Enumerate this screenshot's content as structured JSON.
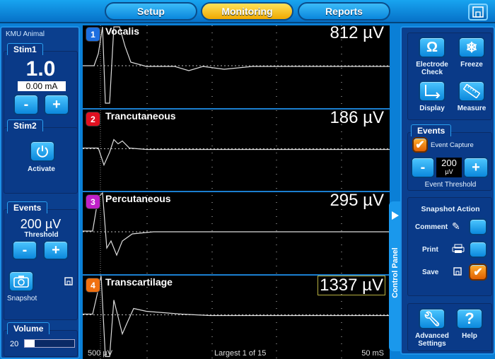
{
  "topbar": {
    "tabs": [
      {
        "label": "Setup"
      },
      {
        "label": "Monitoring",
        "active": true
      },
      {
        "label": "Reports"
      }
    ],
    "corner_icon": "save-icon"
  },
  "left": {
    "title": "KMU Animal",
    "stim1": {
      "label": "Stim1",
      "value": "1.0",
      "current": "0.00 mA",
      "minus": "-",
      "plus": "+"
    },
    "stim2": {
      "label": "Stim2",
      "activate": "Activate"
    },
    "events": {
      "label": "Events",
      "threshold_value": "200 µV",
      "threshold_label": "Threshold",
      "minus": "-",
      "plus": "+",
      "snapshot": "Snapshot"
    },
    "volume": {
      "label": "Volume",
      "value": "20",
      "level_percent": 20
    }
  },
  "scope": {
    "channels": [
      {
        "num": "1",
        "name": "Vocalis",
        "amplitude": "812 µV",
        "color": "#1d6fe0"
      },
      {
        "num": "2",
        "name": "Trancutaneous",
        "amplitude": "186 µV",
        "color": "#e01020"
      },
      {
        "num": "3",
        "name": "Percutaneous",
        "amplitude": "295 µV",
        "color": "#c020c8"
      },
      {
        "num": "4",
        "name": "Transcartilage",
        "amplitude": "1337 µV",
        "color": "#f07010"
      }
    ],
    "scale": "500 µV",
    "status": "Largest 1 of 15",
    "time": "50 mS"
  },
  "right": {
    "electrode_check": "Electrode Check",
    "freeze": "Freeze",
    "display": "Display",
    "measure": "Measure",
    "events": {
      "label": "Events",
      "event_capture": "Event Capture",
      "event_capture_checked": true,
      "threshold": "200",
      "unit": "µV",
      "minus": "-",
      "plus": "+",
      "threshold_label": "Event Threshold"
    },
    "snapshot": {
      "title": "Snapshot Action",
      "comment": "Comment",
      "comment_checked": false,
      "print": "Print",
      "print_checked": false,
      "save": "Save",
      "save_checked": true
    },
    "advanced": "Advanced Settings",
    "help": "Help",
    "control_panel": "Control Panel"
  }
}
